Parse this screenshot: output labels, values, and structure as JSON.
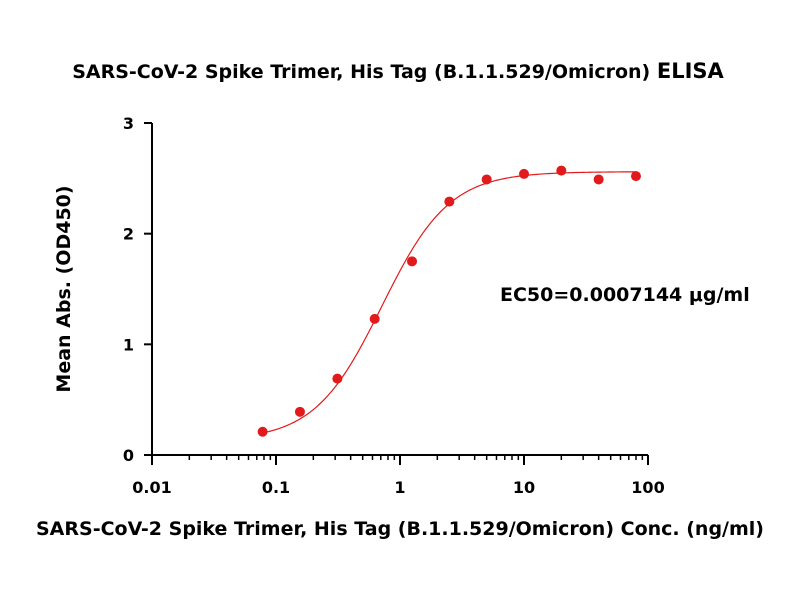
{
  "chart_data": {
    "type": "scatter",
    "title": "SARS-CoV-2 Spike Trimer, His Tag (B.1.1.529/Omicron)",
    "title_suffix": "ELISA",
    "xlabel": "SARS-CoV-2 Spike Trimer, His Tag (B.1.1.529/Omicron) Conc. (ng/ml)",
    "ylabel": "Mean Abs. (OD450)",
    "x_scale": "log",
    "xlim": [
      0.01,
      100
    ],
    "ylim": [
      0,
      3
    ],
    "x_ticks": [
      0.01,
      0.1,
      1,
      10,
      100
    ],
    "x_tick_labels": [
      "0.01",
      "0.1",
      "1",
      "10",
      "100"
    ],
    "y_ticks": [
      0,
      1,
      2,
      3
    ],
    "y_tick_labels": [
      "0",
      "1",
      "2",
      "3"
    ],
    "annotation": "EC50=0.0007144 μg/ml",
    "series": [
      {
        "x": [
          0.078,
          0.156,
          0.3125,
          0.625,
          1.25,
          2.5,
          5,
          10,
          20,
          40,
          80
        ],
        "y": [
          0.21,
          0.39,
          0.69,
          1.23,
          1.75,
          2.29,
          2.49,
          2.54,
          2.57,
          2.49,
          2.52
        ]
      }
    ],
    "fit": {
      "model": "4PL",
      "bottom": 0.13,
      "top": 2.56,
      "ec50": 0.7144,
      "hill": 1.6
    },
    "colors": {
      "points": "#e31a1c",
      "curve": "#e31a1c",
      "axes": "#000000"
    },
    "grid": false,
    "legend": "none"
  }
}
